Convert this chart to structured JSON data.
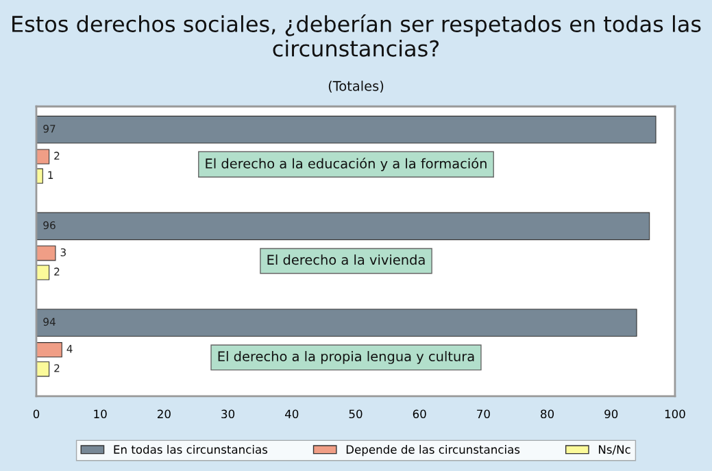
{
  "chart_data": {
    "type": "bar",
    "orientation": "horizontal",
    "title": "Estos derechos sociales, ¿deberían ser respetados en todas las circunstancias?",
    "subtitle": "(Totales)",
    "categories": [
      "El derecho a la educación y a la formación",
      "El derecho a la vivienda",
      "El derecho a la propia lengua y cultura"
    ],
    "series": [
      {
        "name": "En todas las circunstancias",
        "color": "#778896",
        "values": [
          97,
          96,
          94
        ]
      },
      {
        "name": "Depende de las circunstancias",
        "color": "#f09e86",
        "values": [
          2,
          3,
          4
        ]
      },
      {
        "name": "Ns/Nc",
        "color": "#fbfa9a",
        "values": [
          1,
          2,
          2
        ]
      }
    ],
    "xlim": [
      0,
      100
    ],
    "xticks": [
      0,
      10,
      20,
      30,
      40,
      50,
      60,
      70,
      80,
      90,
      100
    ],
    "data_labels": true,
    "legend": "bottom",
    "grid": false
  }
}
